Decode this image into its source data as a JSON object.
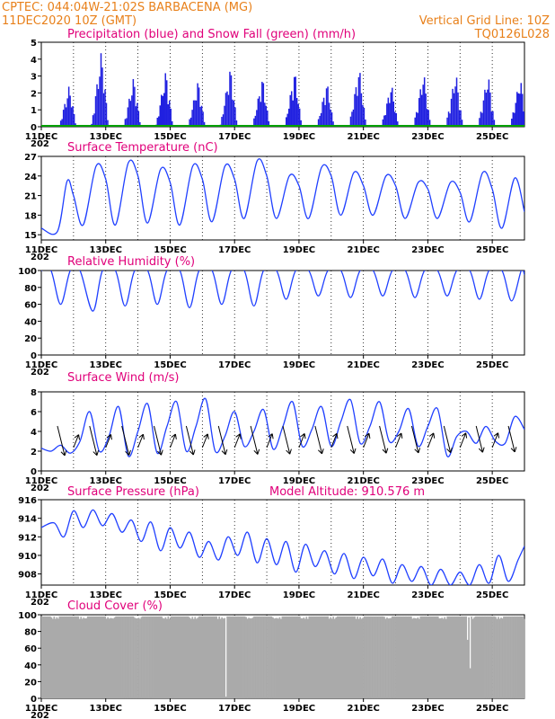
{
  "header": {
    "line1_left": "CPTEC:   044:04W-21:02S   BARBACENA (MG)",
    "line2_left": "11DEC2020  10Z (GMT)",
    "line2_right": "Vertical Grid Line: 10Z",
    "line3_right": "TQ0126L028"
  },
  "x_axis": {
    "day_range": [
      11,
      26
    ],
    "labels": [
      "11DEC",
      "13DEC",
      "15DEC",
      "17DEC",
      "19DEC",
      "21DEC",
      "23DEC",
      "25DEC"
    ],
    "label_days": [
      11,
      13,
      15,
      17,
      19,
      21,
      23,
      25
    ],
    "year_stub": "202"
  },
  "colors": {
    "precip": "#2020e0",
    "snow": "#00a000",
    "line": "#2040ff",
    "cloud": "#aaaaaa",
    "title": "#e0007a",
    "header": "#e8801a"
  },
  "chart_data": [
    {
      "type": "bar",
      "title": "Precipitation (blue) and Snow Fall (green) (mm/h)",
      "ylim": [
        0,
        5
      ],
      "yticks": [
        "0",
        "1",
        "2",
        "3",
        "4",
        "5"
      ],
      "series": [
        {
          "name": "Precipitation",
          "daily_peaks": [
            {
              "day": 11.85,
              "peak": 2.5
            },
            {
              "day": 12.85,
              "peak": 4.6
            },
            {
              "day": 13.85,
              "peak": 3.0
            },
            {
              "day": 14.85,
              "peak": 3.4
            },
            {
              "day": 15.85,
              "peak": 2.8
            },
            {
              "day": 16.85,
              "peak": 3.6
            },
            {
              "day": 17.85,
              "peak": 3.0
            },
            {
              "day": 18.85,
              "peak": 3.4
            },
            {
              "day": 19.85,
              "peak": 2.7
            },
            {
              "day": 20.85,
              "peak": 3.6
            },
            {
              "day": 21.85,
              "peak": 2.6
            },
            {
              "day": 22.85,
              "peak": 3.3
            },
            {
              "day": 23.85,
              "peak": 3.3
            },
            {
              "day": 24.85,
              "peak": 3.2
            },
            {
              "day": 25.85,
              "peak": 3.0
            }
          ]
        },
        {
          "name": "Snow Fall",
          "value": 0
        }
      ]
    },
    {
      "type": "line",
      "title": "Surface Temperature (nC)",
      "ylim": [
        14.2,
        27
      ],
      "yticks": [
        "15",
        "18",
        "21",
        "24",
        "27"
      ],
      "ytick_values": [
        15,
        18,
        21,
        24,
        27
      ],
      "x": [
        11.0,
        11.5,
        11.8,
        12.0,
        12.3,
        12.7,
        13.0,
        13.3,
        13.7,
        14.0,
        14.3,
        14.7,
        15.0,
        15.3,
        15.7,
        16.0,
        16.3,
        16.7,
        17.0,
        17.3,
        17.7,
        18.0,
        18.3,
        18.7,
        19.0,
        19.3,
        19.7,
        20.0,
        20.3,
        20.7,
        21.0,
        21.3,
        21.7,
        22.0,
        22.3,
        22.7,
        23.0,
        23.3,
        23.7,
        24.0,
        24.3,
        24.7,
        25.0,
        25.3,
        25.7,
        26.0
      ],
      "values": [
        16.0,
        15.5,
        23.2,
        21.0,
        16.5,
        25.5,
        23.5,
        16.5,
        26.0,
        24.0,
        16.8,
        25.0,
        23.0,
        16.5,
        25.5,
        23.5,
        17.0,
        25.5,
        23.5,
        17.5,
        26.3,
        24.0,
        17.5,
        24.0,
        22.5,
        17.5,
        25.3,
        24.0,
        18.0,
        24.5,
        22.5,
        18.0,
        24.0,
        22.5,
        17.5,
        23.0,
        22.0,
        17.5,
        23.0,
        21.5,
        17.0,
        24.5,
        22.0,
        16.0,
        23.7,
        18.5
      ]
    },
    {
      "type": "line",
      "title": "Relative Humidity (%)",
      "ylim": [
        0,
        100
      ],
      "yticks": [
        "0",
        "20",
        "40",
        "60",
        "80",
        "100"
      ],
      "ytick_values": [
        0,
        20,
        40,
        60,
        80,
        100
      ],
      "x": [
        11.0,
        11.3,
        11.6,
        11.9,
        12.2,
        12.6,
        12.9,
        13.3,
        13.6,
        13.9,
        14.3,
        14.6,
        14.9,
        15.3,
        15.6,
        15.9,
        16.3,
        16.6,
        16.9,
        17.3,
        17.6,
        17.9,
        18.3,
        18.6,
        18.9,
        19.3,
        19.6,
        19.9,
        20.3,
        20.6,
        20.9,
        21.3,
        21.6,
        21.9,
        22.3,
        22.6,
        22.9,
        23.3,
        23.6,
        23.9,
        24.3,
        24.6,
        24.9,
        25.3,
        25.6,
        25.9,
        26.0
      ],
      "values": [
        100,
        100,
        60,
        100,
        100,
        52,
        100,
        100,
        58,
        100,
        100,
        60,
        100,
        100,
        56,
        100,
        100,
        60,
        100,
        100,
        58,
        100,
        100,
        66,
        100,
        100,
        70,
        100,
        100,
        68,
        100,
        100,
        70,
        100,
        100,
        68,
        100,
        100,
        70,
        100,
        100,
        66,
        100,
        100,
        64,
        100,
        95
      ]
    },
    {
      "type": "line",
      "title": "Surface Wind (m/s)",
      "ylim": [
        0,
        8
      ],
      "yticks": [
        "0",
        "2",
        "4",
        "6",
        "8"
      ],
      "ytick_values": [
        0,
        2,
        4,
        6,
        8
      ],
      "x": [
        11.0,
        11.3,
        11.6,
        11.9,
        12.2,
        12.5,
        12.8,
        13.1,
        13.4,
        13.7,
        14.0,
        14.3,
        14.6,
        14.9,
        15.2,
        15.5,
        15.8,
        16.1,
        16.4,
        16.7,
        17.0,
        17.3,
        17.6,
        17.9,
        18.2,
        18.5,
        18.8,
        19.1,
        19.4,
        19.7,
        20.0,
        20.3,
        20.6,
        20.9,
        21.2,
        21.5,
        21.8,
        22.1,
        22.4,
        22.7,
        23.0,
        23.3,
        23.6,
        23.9,
        24.2,
        24.5,
        24.8,
        25.1,
        25.4,
        25.7,
        26.0
      ],
      "values": [
        2.3,
        2.0,
        2.6,
        1.8,
        3.0,
        6.0,
        2.0,
        3.5,
        6.5,
        1.5,
        4.0,
        6.8,
        1.8,
        4.5,
        7.0,
        2.0,
        4.5,
        7.3,
        2.0,
        3.5,
        6.0,
        2.5,
        4.0,
        6.2,
        2.2,
        4.5,
        7.0,
        2.5,
        4.2,
        6.5,
        2.5,
        5.0,
        7.2,
        2.8,
        4.5,
        7.0,
        3.0,
        4.0,
        6.3,
        2.5,
        4.5,
        6.3,
        1.5,
        3.5,
        4.0,
        2.8,
        4.5,
        3.0,
        2.8,
        5.5,
        4.2
      ],
      "arrows_note": "wind direction arrows shown"
    },
    {
      "type": "line",
      "title": "Surface Pressure (hPa)",
      "annotation": "Model Altitude: 910.576 m",
      "ylim": [
        906.8,
        916
      ],
      "yticks": [
        "908",
        "910",
        "912",
        "914",
        "916"
      ],
      "ytick_values": [
        908,
        910,
        912,
        914,
        916
      ],
      "x": [
        11.0,
        11.4,
        11.7,
        12.0,
        12.3,
        12.6,
        12.9,
        13.2,
        13.5,
        13.8,
        14.1,
        14.4,
        14.7,
        15.0,
        15.3,
        15.6,
        15.9,
        16.2,
        16.5,
        16.8,
        17.1,
        17.4,
        17.7,
        18.0,
        18.3,
        18.6,
        18.9,
        19.2,
        19.5,
        19.8,
        20.1,
        20.4,
        20.7,
        21.0,
        21.3,
        21.6,
        21.9,
        22.2,
        22.5,
        22.8,
        23.1,
        23.4,
        23.7,
        24.0,
        24.3,
        24.6,
        24.9,
        25.2,
        25.5,
        25.8,
        26.0
      ],
      "values": [
        913.0,
        913.5,
        912.0,
        914.8,
        913.0,
        914.9,
        913.2,
        914.5,
        912.5,
        913.8,
        911.5,
        913.6,
        910.5,
        913.0,
        910.8,
        912.5,
        909.8,
        911.5,
        909.5,
        912.0,
        910.0,
        912.5,
        909.2,
        911.8,
        909.0,
        911.5,
        908.2,
        911.2,
        908.8,
        910.5,
        908.0,
        910.2,
        907.5,
        909.8,
        907.8,
        909.6,
        907.0,
        909.0,
        907.2,
        908.8,
        906.8,
        908.5,
        906.8,
        908.2,
        906.8,
        909.0,
        907.0,
        910.0,
        907.2,
        909.5,
        911.0
      ]
    },
    {
      "type": "area",
      "title": "Cloud Cover (%)",
      "ylim": [
        0,
        100
      ],
      "yticks": [
        "0",
        "20",
        "40",
        "60",
        "80",
        "100"
      ],
      "ytick_values": [
        0,
        20,
        40,
        60,
        80,
        100
      ],
      "baseline_value": 98,
      "dips": [
        {
          "day": 16.7,
          "value": 2
        },
        {
          "day": 24.3,
          "value": 36
        },
        {
          "day": 24.2,
          "value": 70
        }
      ]
    }
  ]
}
